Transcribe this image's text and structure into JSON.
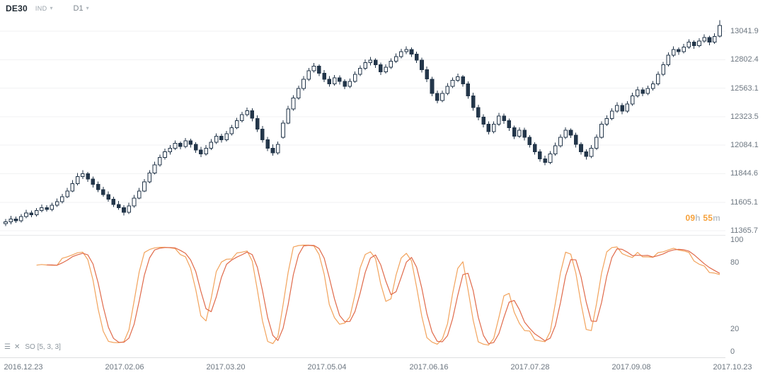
{
  "header": {
    "symbol": "DE30",
    "instrument_type": "IND",
    "timeframe": "D1"
  },
  "icons": {
    "caret": "▾",
    "indicator_menu": "☰",
    "indicator_close": "✕"
  },
  "countdown": {
    "hours": "09",
    "hours_unit": "h",
    "minutes": "55",
    "minutes_unit": "m"
  },
  "chart_data": {
    "type": "candlestick",
    "symbol": "DE30",
    "timeframe": "D1",
    "grid": "horizontal-only",
    "legend_position": "none",
    "x_tick_labels": [
      "2016.12.23",
      "2017.02.06",
      "2017.03.20",
      "2017.05.04",
      "2017.06.16",
      "2017.07.28",
      "2017.09.08",
      "2017.10.23"
    ],
    "price_axis_ticks": [
      13041.9,
      12802.4,
      12563.1,
      12323.5,
      12084.1,
      11844.6,
      11605.1,
      11365.7
    ],
    "price_range": [
      11330,
      13305
    ],
    "candle_color": "#23364a",
    "candles": [
      [
        11425,
        11465,
        11405,
        11440
      ],
      [
        11440,
        11490,
        11420,
        11465
      ],
      [
        11465,
        11485,
        11430,
        11450
      ],
      [
        11450,
        11505,
        11435,
        11485
      ],
      [
        11485,
        11540,
        11470,
        11515
      ],
      [
        11515,
        11535,
        11480,
        11500
      ],
      [
        11500,
        11555,
        11485,
        11535
      ],
      [
        11535,
        11585,
        11520,
        11560
      ],
      [
        11560,
        11580,
        11525,
        11545
      ],
      [
        11545,
        11600,
        11530,
        11580
      ],
      [
        11580,
        11635,
        11565,
        11610
      ],
      [
        11610,
        11675,
        11595,
        11650
      ],
      [
        11650,
        11725,
        11640,
        11700
      ],
      [
        11700,
        11790,
        11690,
        11760
      ],
      [
        11760,
        11850,
        11745,
        11820
      ],
      [
        11820,
        11875,
        11800,
        11845
      ],
      [
        11845,
        11860,
        11775,
        11800
      ],
      [
        11800,
        11820,
        11730,
        11755
      ],
      [
        11755,
        11780,
        11690,
        11710
      ],
      [
        11710,
        11735,
        11650,
        11670
      ],
      [
        11670,
        11695,
        11610,
        11630
      ],
      [
        11630,
        11650,
        11565,
        11585
      ],
      [
        11585,
        11615,
        11540,
        11560
      ],
      [
        11560,
        11580,
        11495,
        11520
      ],
      [
        11520,
        11600,
        11505,
        11575
      ],
      [
        11575,
        11665,
        11560,
        11640
      ],
      [
        11640,
        11725,
        11630,
        11700
      ],
      [
        11700,
        11800,
        11690,
        11775
      ],
      [
        11775,
        11875,
        11765,
        11850
      ],
      [
        11850,
        11945,
        11840,
        11920
      ],
      [
        11920,
        12005,
        11905,
        11980
      ],
      [
        11980,
        12055,
        11965,
        12030
      ],
      [
        12030,
        12085,
        12005,
        12060
      ],
      [
        12060,
        12125,
        12045,
        12100
      ],
      [
        12100,
        12115,
        12050,
        12075
      ],
      [
        12075,
        12145,
        12060,
        12120
      ],
      [
        12120,
        12140,
        12065,
        12090
      ],
      [
        12090,
        12110,
        12020,
        12045
      ],
      [
        12045,
        12070,
        11985,
        12010
      ],
      [
        12010,
        12085,
        11995,
        12060
      ],
      [
        12060,
        12135,
        12045,
        12110
      ],
      [
        12110,
        12185,
        12095,
        12160
      ],
      [
        12160,
        12180,
        12105,
        12130
      ],
      [
        12130,
        12205,
        12115,
        12180
      ],
      [
        12180,
        12255,
        12165,
        12230
      ],
      [
        12230,
        12315,
        12220,
        12290
      ],
      [
        12290,
        12365,
        12275,
        12340
      ],
      [
        12340,
        12400,
        12325,
        12375
      ],
      [
        12375,
        12395,
        12285,
        12310
      ],
      [
        12310,
        12335,
        12195,
        12220
      ],
      [
        12220,
        12245,
        12105,
        12130
      ],
      [
        12130,
        12155,
        12035,
        12060
      ],
      [
        12060,
        12090,
        11995,
        12020
      ],
      [
        12020,
        12115,
        12005,
        12090
      ],
      [
        12150,
        12295,
        12140,
        12270
      ],
      [
        12270,
        12415,
        12260,
        12390
      ],
      [
        12390,
        12505,
        12375,
        12480
      ],
      [
        12480,
        12585,
        12465,
        12560
      ],
      [
        12560,
        12665,
        12545,
        12640
      ],
      [
        12640,
        12735,
        12625,
        12710
      ],
      [
        12710,
        12775,
        12695,
        12750
      ],
      [
        12750,
        12765,
        12665,
        12690
      ],
      [
        12690,
        12715,
        12615,
        12640
      ],
      [
        12640,
        12665,
        12575,
        12600
      ],
      [
        12600,
        12675,
        12585,
        12650
      ],
      [
        12650,
        12670,
        12595,
        12620
      ],
      [
        12620,
        12640,
        12555,
        12580
      ],
      [
        12580,
        12645,
        12565,
        12620
      ],
      [
        12620,
        12705,
        12610,
        12680
      ],
      [
        12680,
        12755,
        12665,
        12730
      ],
      [
        12730,
        12805,
        12715,
        12780
      ],
      [
        12780,
        12825,
        12755,
        12800
      ],
      [
        12800,
        12815,
        12735,
        12760
      ],
      [
        12760,
        12780,
        12675,
        12700
      ],
      [
        12700,
        12765,
        12685,
        12740
      ],
      [
        12740,
        12815,
        12725,
        12790
      ],
      [
        12790,
        12855,
        12775,
        12830
      ],
      [
        12830,
        12895,
        12815,
        12870
      ],
      [
        12870,
        12915,
        12850,
        12890
      ],
      [
        12890,
        12905,
        12825,
        12850
      ],
      [
        12850,
        12870,
        12775,
        12800
      ],
      [
        12800,
        12820,
        12695,
        12720
      ],
      [
        12720,
        12745,
        12615,
        12640
      ],
      [
        12640,
        12660,
        12495,
        12520
      ],
      [
        12520,
        12545,
        12435,
        12460
      ],
      [
        12460,
        12545,
        12445,
        12520
      ],
      [
        12520,
        12605,
        12505,
        12580
      ],
      [
        12580,
        12655,
        12565,
        12630
      ],
      [
        12630,
        12685,
        12615,
        12660
      ],
      [
        12660,
        12675,
        12575,
        12600
      ],
      [
        12600,
        12620,
        12475,
        12500
      ],
      [
        12500,
        12525,
        12375,
        12400
      ],
      [
        12400,
        12425,
        12295,
        12320
      ],
      [
        12320,
        12345,
        12235,
        12260
      ],
      [
        12260,
        12285,
        12175,
        12200
      ],
      [
        12200,
        12285,
        12185,
        12260
      ],
      [
        12260,
        12355,
        12245,
        12330
      ],
      [
        12330,
        12350,
        12265,
        12290
      ],
      [
        12290,
        12310,
        12205,
        12230
      ],
      [
        12230,
        12250,
        12135,
        12160
      ],
      [
        12160,
        12235,
        12145,
        12210
      ],
      [
        12210,
        12230,
        12125,
        12150
      ],
      [
        12150,
        12170,
        12065,
        12090
      ],
      [
        12090,
        12110,
        12005,
        12030
      ],
      [
        12030,
        12050,
        11945,
        11970
      ],
      [
        11970,
        11995,
        11915,
        11940
      ],
      [
        11940,
        12035,
        11925,
        12010
      ],
      [
        12010,
        12105,
        11995,
        12080
      ],
      [
        12080,
        12175,
        12065,
        12150
      ],
      [
        12150,
        12235,
        12135,
        12210
      ],
      [
        12210,
        12225,
        12145,
        12170
      ],
      [
        12170,
        12190,
        12065,
        12090
      ],
      [
        12090,
        12110,
        12005,
        12030
      ],
      [
        12030,
        12050,
        11965,
        11990
      ],
      [
        11990,
        12085,
        11975,
        12060
      ],
      [
        12060,
        12175,
        12045,
        12150
      ],
      [
        12150,
        12285,
        12140,
        12260
      ],
      [
        12260,
        12335,
        12245,
        12310
      ],
      [
        12310,
        12395,
        12295,
        12370
      ],
      [
        12370,
        12445,
        12355,
        12420
      ],
      [
        12420,
        12440,
        12345,
        12370
      ],
      [
        12370,
        12455,
        12355,
        12430
      ],
      [
        12430,
        12525,
        12415,
        12500
      ],
      [
        12500,
        12575,
        12485,
        12550
      ],
      [
        12550,
        12570,
        12495,
        12520
      ],
      [
        12520,
        12585,
        12505,
        12560
      ],
      [
        12560,
        12625,
        12545,
        12600
      ],
      [
        12600,
        12705,
        12585,
        12680
      ],
      [
        12680,
        12785,
        12665,
        12760
      ],
      [
        12760,
        12865,
        12745,
        12840
      ],
      [
        12840,
        12915,
        12825,
        12890
      ],
      [
        12890,
        12905,
        12845,
        12870
      ],
      [
        12870,
        12935,
        12855,
        12910
      ],
      [
        12910,
        12975,
        12895,
        12950
      ],
      [
        12950,
        12965,
        12895,
        12920
      ],
      [
        12920,
        12985,
        12905,
        12960
      ],
      [
        12960,
        13015,
        12945,
        12990
      ],
      [
        12990,
        13005,
        12925,
        12950
      ],
      [
        12950,
        13025,
        12935,
        13000
      ],
      [
        13000,
        13135,
        12990,
        13090
      ]
    ],
    "indicator": {
      "name": "SO",
      "params": [
        5,
        3,
        3
      ],
      "label": "SO [5, 3, 3]",
      "axis_ticks": [
        100,
        80,
        20,
        0
      ],
      "range": [
        0,
        100
      ],
      "k_color": "#f2a35c",
      "d_color": "#e06a4a"
    }
  }
}
